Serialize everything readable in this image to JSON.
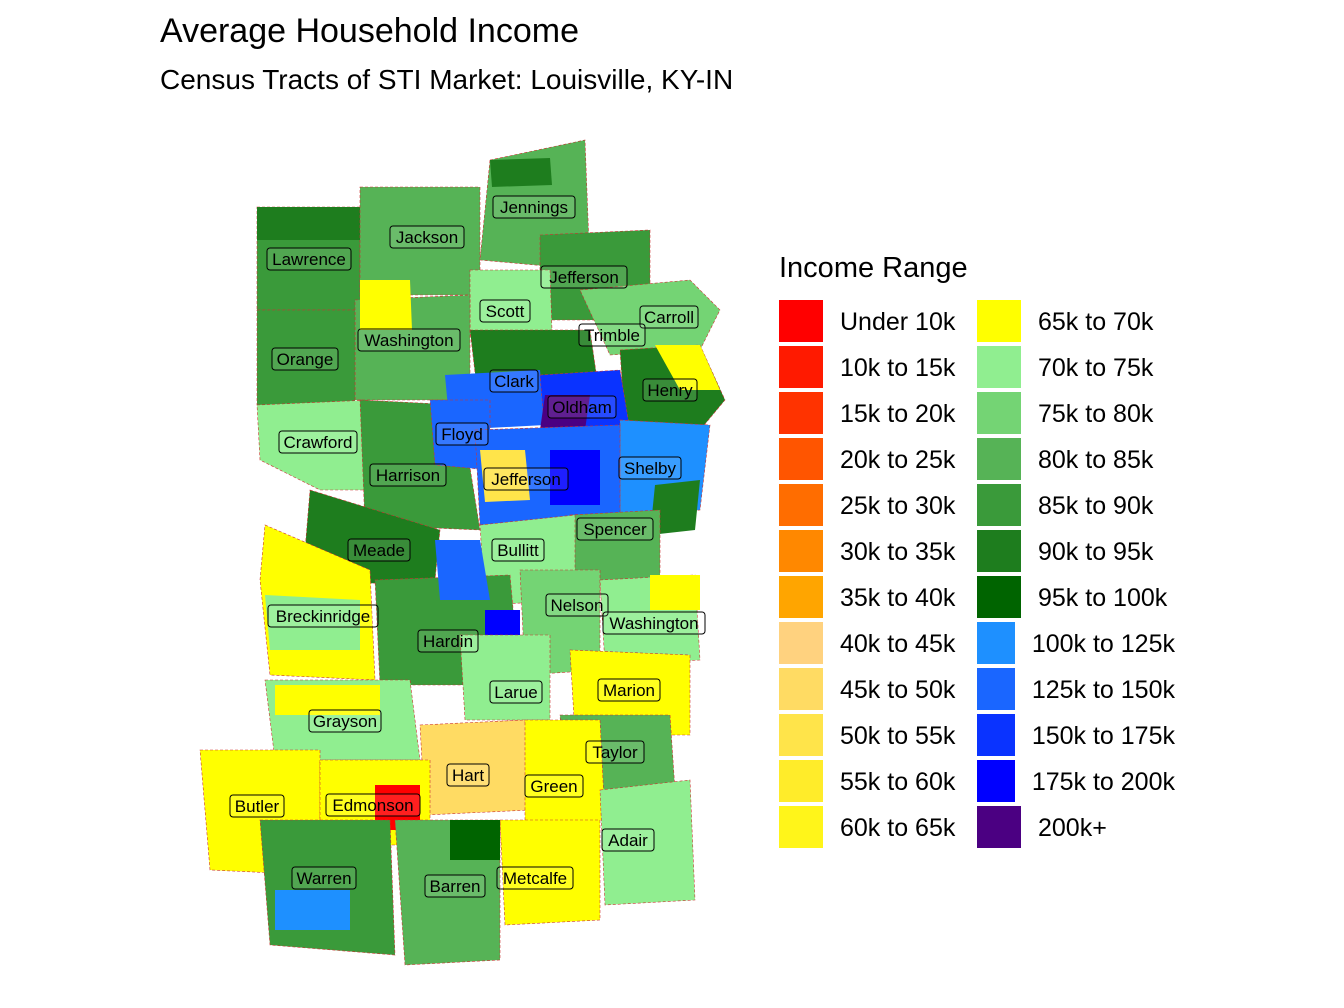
{
  "title": "Average Household Income",
  "subtitle": "Census Tracts of STI Market: Louisville, KY-IN",
  "legend": {
    "title": "Income Range",
    "items": [
      {
        "label": "Under 10k",
        "color": "#ff0000"
      },
      {
        "label": "10k to 15k",
        "color": "#ff1a00"
      },
      {
        "label": "15k to 20k",
        "color": "#ff3300"
      },
      {
        "label": "20k to 25k",
        "color": "#ff5500"
      },
      {
        "label": "25k to 30k",
        "color": "#ff6d00"
      },
      {
        "label": "30k to 35k",
        "color": "#ff8800"
      },
      {
        "label": "35k to 40k",
        "color": "#ffa500"
      },
      {
        "label": "40k to 45k",
        "color": "#ffd27f"
      },
      {
        "label": "45k to 50k",
        "color": "#ffdb63"
      },
      {
        "label": "50k to 55k",
        "color": "#ffe44a"
      },
      {
        "label": "55k to 60k",
        "color": "#ffec2a"
      },
      {
        "label": "60k to 65k",
        "color": "#fff51a"
      },
      {
        "label": "65k to 70k",
        "color": "#ffff00"
      },
      {
        "label": "70k to 75k",
        "color": "#90ee90"
      },
      {
        "label": "75k to 80k",
        "color": "#74d474"
      },
      {
        "label": "80k to 85k",
        "color": "#56b356"
      },
      {
        "label": "85k to 90k",
        "color": "#3a9a3a"
      },
      {
        "label": "90k to 95k",
        "color": "#1e7d1e"
      },
      {
        "label": "95k to 100k",
        "color": "#006400"
      },
      {
        "label": "100k to 125k",
        "color": "#1e90ff"
      },
      {
        "label": "125k to 150k",
        "color": "#1a66ff"
      },
      {
        "label": "150k to 175k",
        "color": "#0a33ff"
      },
      {
        "label": "175k to 200k",
        "color": "#0000ff"
      },
      {
        "label": "200k+",
        "color": "#4b0082"
      }
    ]
  },
  "counties": [
    "Jennings",
    "Jackson",
    "Lawrence",
    "Jefferson",
    "Scott",
    "Carroll",
    "Washington",
    "Trimble",
    "Orange",
    "Clark",
    "Henry",
    "Oldham",
    "Floyd",
    "Crawford",
    "Shelby",
    "Harrison",
    "Jefferson",
    "Spencer",
    "Meade",
    "Bullitt",
    "Nelson",
    "Breckinridge",
    "Washington",
    "Hardin",
    "Marion",
    "Larue",
    "Grayson",
    "Taylor",
    "Hart",
    "Green",
    "Butler",
    "Edmonson",
    "Adair",
    "Warren",
    "Metcalfe",
    "Barren"
  ]
}
